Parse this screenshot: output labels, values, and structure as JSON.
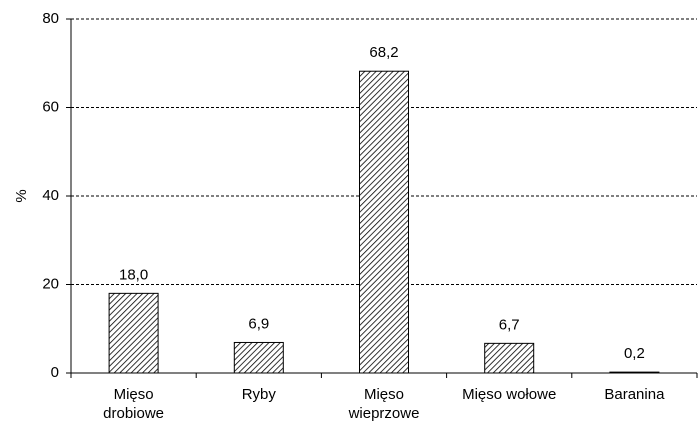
{
  "chart_data": {
    "type": "bar",
    "categories": [
      [
        "Mięso",
        "drobiowe"
      ],
      [
        "Ryby"
      ],
      [
        "Mięso",
        "wieprzowe"
      ],
      [
        "Mięso wołowe"
      ],
      [
        "Baranina"
      ]
    ],
    "values": [
      18.0,
      6.9,
      68.2,
      6.7,
      0.2
    ],
    "data_labels": [
      "18,0",
      "6,9",
      "68,2",
      "6,7",
      "0,2"
    ],
    "ylabel": "%",
    "ylim": [
      0,
      80
    ],
    "yticks": [
      0,
      20,
      40,
      60,
      80
    ],
    "ytick_labels": [
      "0",
      "20",
      "40",
      "60",
      "80"
    ],
    "grid": "horizontal dashed",
    "bar_fill": "diagonal hatch",
    "colors": {
      "bar_stroke": "#000000",
      "hatch": "#000000",
      "grid": "#000000"
    }
  }
}
